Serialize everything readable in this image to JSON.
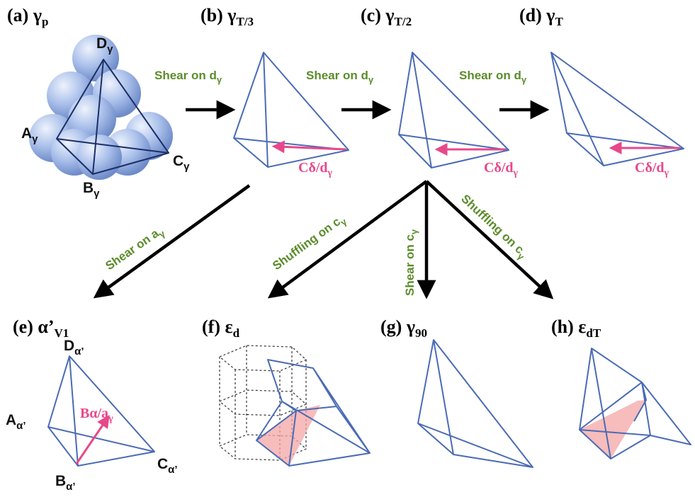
{
  "colors": {
    "edge": "#4a6bb5",
    "green": "#5b8c2a",
    "pink": "#e8488a",
    "shade": "#f4a6a6",
    "sphere": "#9fb7e6"
  },
  "panels": {
    "a": {
      "label": "(a) γ",
      "sub": "p"
    },
    "b": {
      "label": "(b) γ",
      "sub": "T/3"
    },
    "c": {
      "label": "(c) γ",
      "sub": "T/2"
    },
    "d": {
      "label": "(d) γ",
      "sub": "T"
    },
    "e": {
      "label": "(e) α’",
      "sub": "V1"
    },
    "f": {
      "label": "(f) ε",
      "sub": "d"
    },
    "g": {
      "label": "(g) γ",
      "sub": "90"
    },
    "h": {
      "label": "(h) ε",
      "sub": "dT"
    }
  },
  "vertices_a": {
    "d": {
      "main": "D",
      "sub": "γ"
    },
    "a": {
      "main": "A",
      "sub": "γ"
    },
    "b": {
      "main": "B",
      "sub": "γ"
    },
    "c": {
      "main": "C",
      "sub": "γ"
    }
  },
  "vertices_e": {
    "d": {
      "main": "D",
      "sub": "α’"
    },
    "a": {
      "main": "A",
      "sub": "α’"
    },
    "b": {
      "main": "B",
      "sub": "α’"
    },
    "c": {
      "main": "C",
      "sub": "α’"
    }
  },
  "transitions": {
    "ab": {
      "main": "Shear on d",
      "sub": "γ"
    },
    "bc": {
      "main": "Shear on d",
      "sub": "γ"
    },
    "cd": {
      "main": "Shear on d",
      "sub": "γ"
    },
    "be": {
      "main": "Shear on a",
      "sub": "γ"
    },
    "cf": {
      "main": "Shuffling on c",
      "sub": "γ"
    },
    "cg": {
      "main": "Shear on c",
      "sub": "γ"
    },
    "ch": {
      "main": "Shuffling on c",
      "sub": "γ"
    }
  },
  "burgers": {
    "b": {
      "main": "Cδ/d",
      "sub": "γ"
    },
    "c": {
      "main": "Cδ/d",
      "sub": "γ"
    },
    "d": {
      "main": "Cδ/d",
      "sub": "γ"
    },
    "e": {
      "main": "Bα/a",
      "sub": "γ"
    }
  }
}
